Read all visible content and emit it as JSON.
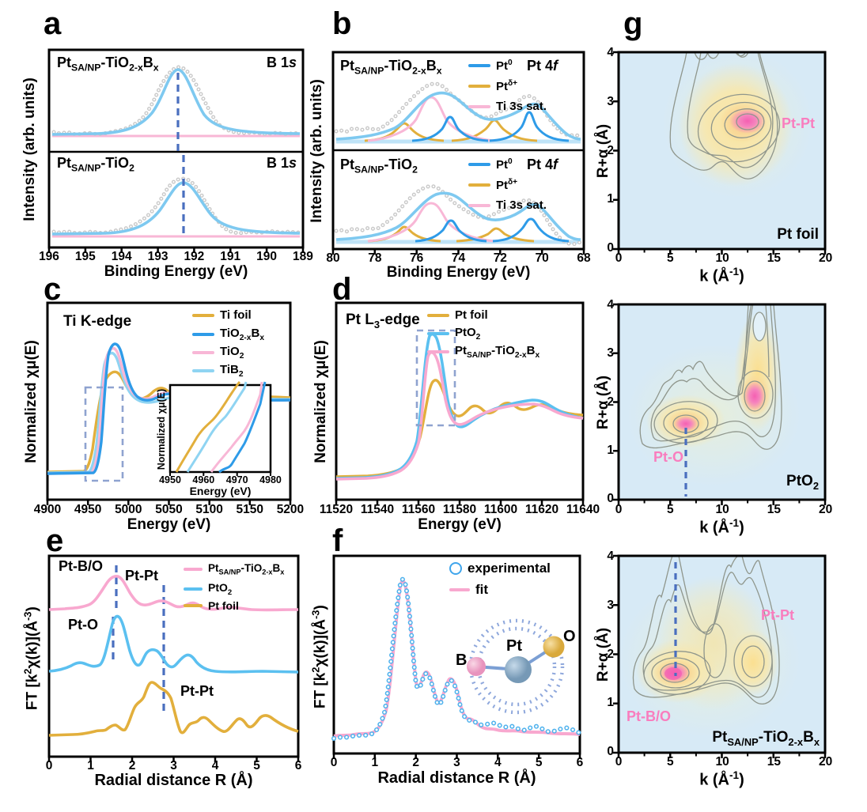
{
  "figure": {
    "panels": [
      "a",
      "b",
      "c",
      "d",
      "e",
      "f",
      "g"
    ]
  },
  "ticks": {
    "a": [
      "196",
      "195",
      "194",
      "193",
      "192",
      "191",
      "190",
      "189"
    ],
    "b": [
      "80",
      "78",
      "76",
      "74",
      "72",
      "70",
      "68"
    ],
    "c": [
      "4900",
      "4950",
      "5000",
      "5050",
      "5100",
      "5150",
      "5200"
    ],
    "c_inset": [
      "4950",
      "4960",
      "4970",
      "4980"
    ],
    "d": [
      "11520",
      "11540",
      "11560",
      "11580",
      "11600",
      "11620",
      "11640"
    ],
    "r": [
      "0",
      "1",
      "2",
      "3",
      "4",
      "5",
      "6"
    ],
    "g_x": [
      "0",
      "5",
      "10",
      "15",
      "20"
    ],
    "g_y": [
      "4",
      "3",
      "2",
      "1",
      "0"
    ]
  },
  "rich": {
    "pts_tio2xbx": [
      {
        "t": "Pt"
      },
      {
        "t": "SA/NP",
        "sub": 1
      },
      {
        "t": "-TiO"
      },
      {
        "t": "2-x",
        "sub": 1
      },
      {
        "t": "B"
      },
      {
        "t": "x",
        "sub": 1
      }
    ],
    "pts_tio2": [
      {
        "t": "Pt"
      },
      {
        "t": "SA/NP",
        "sub": 1
      },
      {
        "t": "-TiO"
      },
      {
        "t": "2",
        "sub": 1
      }
    ],
    "b1s": [
      {
        "t": "B 1"
      },
      {
        "t": "s",
        "i": 1
      }
    ],
    "pt4f": [
      {
        "t": "Pt 4"
      },
      {
        "t": "f",
        "i": 1
      }
    ],
    "pt0": [
      {
        "t": "Pt"
      },
      {
        "t": "0",
        "sup": 1
      }
    ],
    "ptdelta": [
      {
        "t": "Pt"
      },
      {
        "t": "δ+",
        "sup": 1
      }
    ],
    "ti3s": [
      {
        "t": "Ti 3s sat."
      }
    ],
    "ti_k_edge": [
      {
        "t": "Ti K-edge"
      }
    ],
    "tio2xbx": [
      {
        "t": "TiO"
      },
      {
        "t": "2-x",
        "sub": 1
      },
      {
        "t": "B"
      },
      {
        "t": "x",
        "sub": 1
      }
    ],
    "tio2": [
      {
        "t": "TiO"
      },
      {
        "t": "2",
        "sub": 1
      }
    ],
    "tib2": [
      {
        "t": "TiB"
      },
      {
        "t": "2",
        "sub": 1
      }
    ],
    "pt_l3_edge": [
      {
        "t": "Pt L"
      },
      {
        "t": "3",
        "sub": 1
      },
      {
        "t": "-edge"
      }
    ],
    "pto2": [
      {
        "t": "PtO"
      },
      {
        "t": "2",
        "sub": 1
      }
    ],
    "norm_chi": [
      {
        "t": "Normalized χμ(E)"
      }
    ],
    "ft_axis": [
      {
        "t": "FT [k"
      },
      {
        "t": "2",
        "sup": 1
      },
      {
        "t": "χ(k)](Å"
      },
      {
        "t": "-3",
        "sup": 1
      },
      {
        "t": ")"
      }
    ],
    "k_axis": [
      {
        "t": "k (Å"
      },
      {
        "t": "-1",
        "sup": 1
      },
      {
        "t": ")"
      }
    ],
    "r_alpha": [
      {
        "t": "R+α (Å)"
      }
    ],
    "intensity": [
      {
        "t": "Intensity (arb. units)"
      }
    ],
    "binding_energy": [
      {
        "t": "Binding Energy (eV)"
      }
    ],
    "energy": [
      {
        "t": "Energy (eV)"
      }
    ],
    "radial": [
      {
        "t": "Radial distance R (Å)"
      }
    ]
  },
  "text": {
    "pt_foil": "Pt foil",
    "ti_foil": "Ti foil",
    "experimental": "experimental",
    "fit": "fit",
    "pt_pt": "Pt-Pt",
    "pt_o": "Pt-O",
    "pt_b_o": "Pt-B/O",
    "atom_b": "B",
    "atom_pt": "Pt",
    "atom_o": "O"
  },
  "colors": {
    "gold": "#E2AF3C",
    "blue": "#2E9BE8",
    "light_blue": "#7EC9F0",
    "sky": "#8FD4F2",
    "pink": "#F8B7D6",
    "pink_label": "#F97DBE",
    "dash_blue": "#4A6FBF",
    "data_gray": "#C9C9C9",
    "contour_bg": "#D7EAF6",
    "contour_yellow": "#FBE39B",
    "contour_pink": "#F472B8",
    "contour_line": "#8F968C"
  },
  "chart_data": [
    {
      "panel": "a",
      "type": "line",
      "title": "B 1s XPS",
      "xlabel": "Binding Energy (eV)",
      "ylabel": "Intensity (arb. units)",
      "xlim": [
        196,
        189
      ],
      "subplots": [
        {
          "sample": "Pt_SA/NP-TiO2-xBx",
          "region": "B 1s",
          "peak_center_eV": 192.4,
          "fwhm_eV": 1.6,
          "series": [
            "experimental points",
            "fit",
            "background"
          ]
        },
        {
          "sample": "Pt_SA/NP-TiO2",
          "region": "B 1s",
          "peak_center_eV": 192.3,
          "fwhm_eV": 1.6,
          "series": [
            "experimental points",
            "fit",
            "background"
          ]
        }
      ]
    },
    {
      "panel": "b",
      "type": "line",
      "title": "Pt 4f XPS",
      "xlabel": "Binding Energy (eV)",
      "xlim": [
        80,
        68
      ],
      "subplots": [
        {
          "sample": "Pt_SA/NP-TiO2-xBx",
          "components": [
            {
              "name": "Pt0",
              "centers_eV": [
                74.4,
                70.6
              ]
            },
            {
              "name": "Ptδ+",
              "centers_eV": [
                76.6,
                72.3
              ]
            },
            {
              "name": "Ti 3s sat.",
              "centers_eV": [
                75.3
              ]
            }
          ]
        },
        {
          "sample": "Pt_SA/NP-TiO2",
          "components": [
            {
              "name": "Pt0",
              "centers_eV": [
                74.4,
                70.8
              ]
            },
            {
              "name": "Ptδ+",
              "centers_eV": [
                76.6,
                72.4
              ]
            },
            {
              "name": "Ti 3s sat.",
              "centers_eV": [
                75.3
              ]
            }
          ]
        }
      ]
    },
    {
      "panel": "c",
      "type": "line",
      "title": "Ti K-edge XANES",
      "xlabel": "Energy (eV)",
      "ylabel": "Normalized χμ(E)",
      "xlim": [
        4900,
        5200
      ],
      "series": [
        {
          "name": "Ti foil",
          "edge_eV": 4962
        },
        {
          "name": "TiO2-xBx",
          "edge_eV": 4970,
          "white_line_eV": 4982
        },
        {
          "name": "TiO2",
          "edge_eV": 4968,
          "white_line_eV": 4983
        },
        {
          "name": "TiB2",
          "edge_eV": 4965
        }
      ],
      "inset_xlim": [
        4950,
        4980
      ],
      "highlight_box_eV": [
        4945,
        4985
      ]
    },
    {
      "panel": "d",
      "type": "line",
      "title": "Pt L3-edge XANES",
      "xlabel": "Energy (eV)",
      "ylabel": "Normalized χμ(E)",
      "xlim": [
        11520,
        11640
      ],
      "white_line_eV": 11567,
      "series": [
        {
          "name": "Pt foil",
          "white_line_intensity": 1.25
        },
        {
          "name": "PtO2",
          "white_line_intensity": 2.05
        },
        {
          "name": "Pt_SA/NP-TiO2-xBx",
          "white_line_intensity": 1.75
        }
      ],
      "highlight_box_eV": [
        11559,
        11578
      ]
    },
    {
      "panel": "e",
      "type": "line",
      "title": "FT-EXAFS comparison",
      "xlabel": "Radial distance R (Å)",
      "ylabel": "FT [k2χ(k)](Å-3)",
      "xlim": [
        0,
        6
      ],
      "series": [
        {
          "name": "Pt_SA/NP-TiO2-xBx",
          "main_peak_R": 1.65,
          "assignment": "Pt-B/O"
        },
        {
          "name": "PtO2",
          "main_peak_R": 1.6,
          "assignment": "Pt-O"
        },
        {
          "name": "Pt foil",
          "main_peak_R": [
            2.45,
            2.75
          ],
          "assignment": "Pt-Pt"
        }
      ],
      "dashed_markers_R": [
        1.62,
        2.8
      ]
    },
    {
      "panel": "f",
      "type": "scatter+line",
      "xlabel": "Radial distance R (Å)",
      "ylabel": "FT [k2χ(k)](Å-3)",
      "xlim": [
        0,
        6
      ],
      "series": [
        {
          "name": "experimental",
          "style": "open circles"
        },
        {
          "name": "fit",
          "style": "line"
        }
      ],
      "peaks_R": [
        1.65,
        2.2,
        2.8,
        3.3
      ],
      "inset": "B-Pt-O coordination sketch"
    },
    {
      "panel": "g",
      "type": "heatmap",
      "xlabel": "k (Å-1)",
      "ylabel": "R+α (Å)",
      "k_range": [
        0,
        20
      ],
      "R_range": [
        0,
        4
      ],
      "subplots": [
        {
          "sample": "Pt foil",
          "maxima": [
            {
              "k": 12.5,
              "R": 2.6,
              "assignment": "Pt-Pt"
            }
          ]
        },
        {
          "sample": "PtO2",
          "maxima": [
            {
              "k": 6.5,
              "R": 1.55,
              "assignment": "Pt-O"
            },
            {
              "k": 13.2,
              "R": 2.1
            }
          ],
          "dashed_k": 6.5
        },
        {
          "sample": "Pt_SA/NP-TiO2-xBx",
          "maxima": [
            {
              "k": 5.5,
              "R": 1.65,
              "assignment": "Pt-B/O"
            },
            {
              "k": 13,
              "R": 1.9,
              "assignment": "Pt-Pt"
            }
          ],
          "dashed_k": 5.5
        }
      ]
    }
  ]
}
